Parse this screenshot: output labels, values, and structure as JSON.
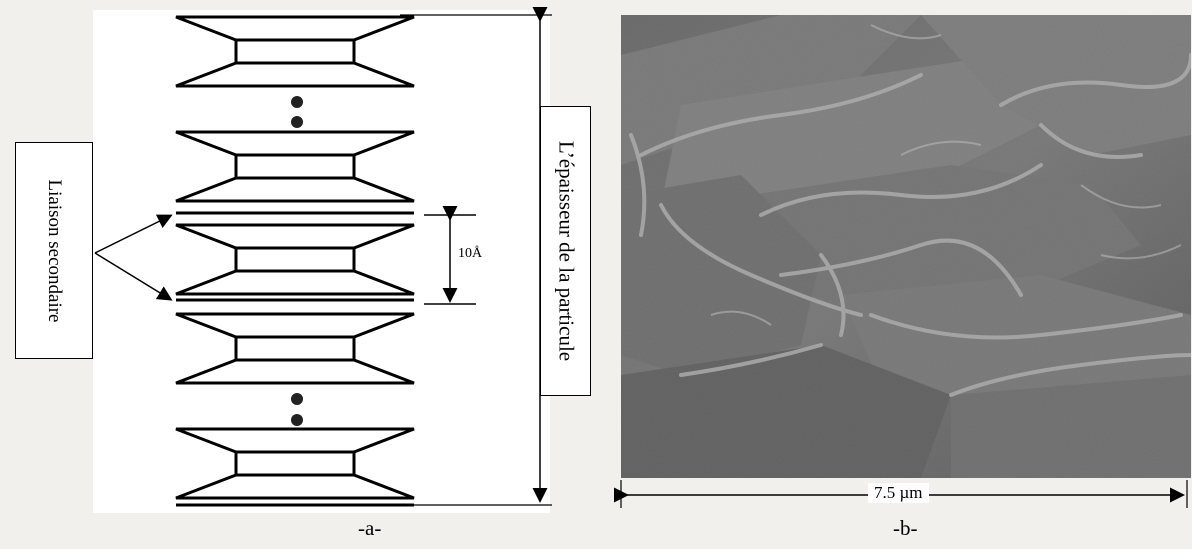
{
  "labels": {
    "liaison": "Liaison secondaire",
    "epaisseur": "L’épaisseur de la particule",
    "spacing": "10Å",
    "scale": "7.5 µm",
    "caption_a": "-a-",
    "caption_b": "-b-"
  }
}
